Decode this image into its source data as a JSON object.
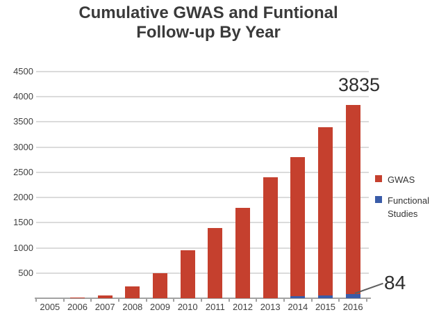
{
  "chart_data": {
    "type": "bar",
    "title": "Cumulative GWAS and Funtional Follow-up By Year",
    "title_lines": [
      "Cumulative GWAS and Funtional",
      "Follow-up By Year"
    ],
    "categories": [
      "2005",
      "2006",
      "2007",
      "2008",
      "2009",
      "2010",
      "2011",
      "2012",
      "2013",
      "2014",
      "2015",
      "2016"
    ],
    "series": [
      {
        "name": "GWAS",
        "color": "#c5402e",
        "values": [
          0,
          10,
          50,
          240,
          500,
          950,
          1400,
          1800,
          2400,
          2800,
          3400,
          3835
        ]
      },
      {
        "name": "Functional Studies",
        "color": "#3a5ca8",
        "values": [
          0,
          0,
          0,
          0,
          0,
          0,
          0,
          0,
          0,
          35,
          50,
          84
        ]
      }
    ],
    "ylim": [
      0,
      4500
    ],
    "ytick_interval": 500,
    "yticks": [
      500,
      1000,
      1500,
      2000,
      2500,
      3000,
      3500,
      4000,
      4500
    ],
    "grid": true,
    "legend_position": "right",
    "annotations": [
      {
        "text": "3835",
        "target": "top of 2016 GWAS bar"
      },
      {
        "text": "84",
        "target": "2016 Functional Studies bar, with leader line"
      }
    ],
    "colors": {
      "gwas_red": "#c5402e",
      "functional_blue": "#3a5ca8",
      "gridline": "#dbdbdb",
      "axis": "#a2a2a2",
      "text": "#3a3a3a"
    }
  }
}
